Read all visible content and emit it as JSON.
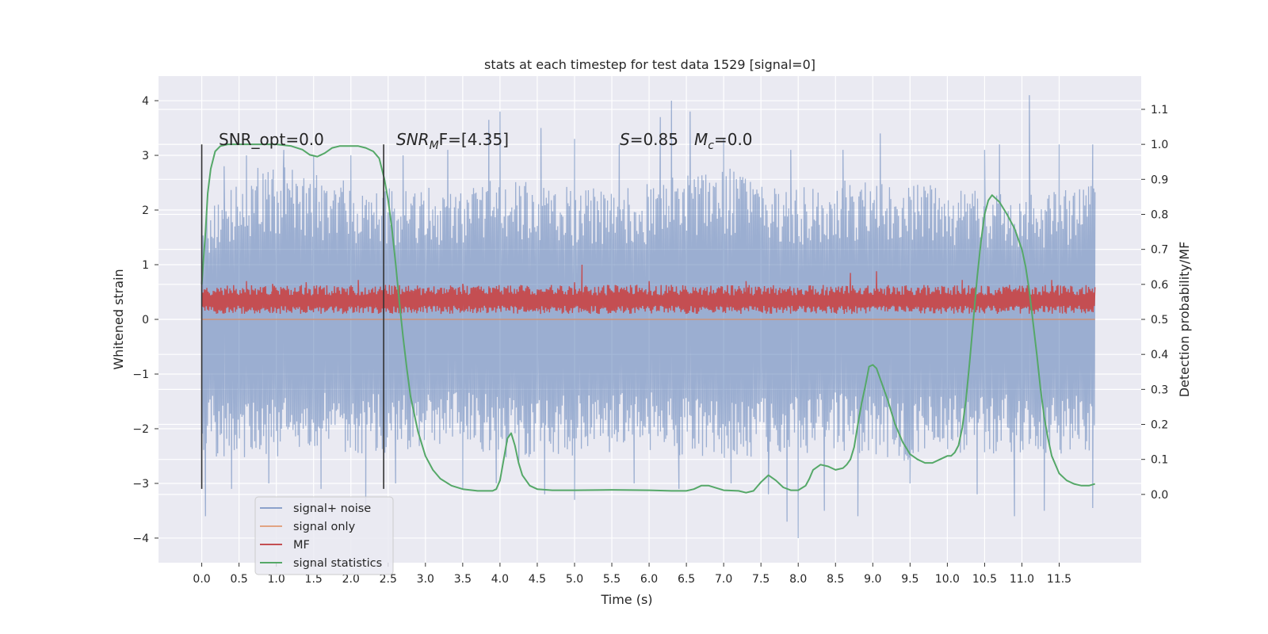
{
  "chart_data": {
    "type": "line",
    "title": "stats at each timestep for test data 1529 [signal=0]",
    "xlabel": "Time (s)",
    "ylabel": "Whitened strain",
    "y2label": "Detection probability/MF",
    "xlim": [
      -0.58,
      12.6
    ],
    "ylim": [
      -4.45,
      4.45
    ],
    "y2lim": [
      -0.195,
      1.195
    ],
    "x_ticks": [
      "0.0",
      "0.5",
      "1.0",
      "1.5",
      "2.0",
      "2.5",
      "3.0",
      "3.5",
      "4.0",
      "4.5",
      "5.0",
      "5.5",
      "6.0",
      "6.5",
      "7.0",
      "7.5",
      "8.0",
      "8.5",
      "9.0",
      "9.5",
      "10.0",
      "10.5",
      "11.0",
      "11.5"
    ],
    "y_ticks": [
      "4",
      "3",
      "2",
      "1",
      "0",
      "−1",
      "−2",
      "−3",
      "−4"
    ],
    "y2_ticks": [
      "1.1",
      "1.0",
      "0.9",
      "0.8",
      "0.7",
      "0.6",
      "0.5",
      "0.4",
      "0.3",
      "0.2",
      "0.1",
      "0.0"
    ],
    "grid": true,
    "legend_placement": "lower-left",
    "annotations": {
      "snr_opt": "SNR_opt=0.0",
      "snr_mf_base": "SNR",
      "snr_mf_sub": "M",
      "snr_mf_rest": "F=[4.35]",
      "s_label": "S",
      "s_rest": "=0.85",
      "mc_base": "M",
      "mc_sub": "c",
      "mc_rest": "=0.0"
    },
    "vertical_markers": [
      0.0,
      2.44
    ],
    "series": [
      {
        "name": "signal+ noise",
        "color": "#4c72b0",
        "axis": "left",
        "band_x": [
          0.0,
          11.98
        ],
        "envelope_upper": [
          2.0,
          2.9,
          2.6,
          2.4,
          2.5,
          2.6,
          2.4,
          2.5,
          2.9,
          2.4,
          2.6,
          2.5,
          2.4,
          2.3,
          2.5
        ],
        "envelope_lower": [
          -2.5,
          -2.6,
          -2.4,
          -2.5,
          -2.3,
          -2.6,
          -2.5,
          -2.4,
          -2.6,
          -2.5,
          -2.4,
          -2.6,
          -2.5,
          -2.5,
          -2.4
        ],
        "spike_max": [
          [
            0.3,
            2.8
          ],
          [
            0.6,
            3.0
          ],
          [
            1.1,
            3.1
          ],
          [
            1.5,
            3.0
          ],
          [
            2.0,
            3.0
          ],
          [
            2.7,
            3.0
          ],
          [
            3.3,
            3.1
          ],
          [
            3.85,
            3.65
          ],
          [
            4.0,
            3.8
          ],
          [
            4.55,
            3.5
          ],
          [
            5.0,
            3.3
          ],
          [
            5.6,
            3.2
          ],
          [
            6.15,
            3.7
          ],
          [
            6.3,
            4.0
          ],
          [
            6.55,
            3.8
          ],
          [
            7.0,
            3.3
          ],
          [
            7.9,
            3.1
          ],
          [
            8.6,
            3.1
          ],
          [
            9.1,
            3.4
          ],
          [
            10.5,
            3.1
          ],
          [
            10.7,
            3.2
          ],
          [
            11.1,
            4.1
          ],
          [
            11.5,
            3.2
          ],
          [
            11.95,
            3.2
          ]
        ],
        "spike_min": [
          [
            0.05,
            -3.6
          ],
          [
            0.4,
            -3.1
          ],
          [
            0.9,
            -3.0
          ],
          [
            1.6,
            -3.1
          ],
          [
            2.2,
            -3.4
          ],
          [
            2.6,
            -3.0
          ],
          [
            3.5,
            -3.1
          ],
          [
            3.95,
            -3.0
          ],
          [
            4.6,
            -3.2
          ],
          [
            5.0,
            -3.3
          ],
          [
            5.8,
            -3.0
          ],
          [
            6.4,
            -3.1
          ],
          [
            7.1,
            -3.0
          ],
          [
            7.6,
            -3.2
          ],
          [
            7.85,
            -3.7
          ],
          [
            8.0,
            -4.0
          ],
          [
            8.35,
            -3.5
          ],
          [
            8.8,
            -3.6
          ],
          [
            9.5,
            -3.0
          ],
          [
            10.4,
            -3.2
          ],
          [
            10.9,
            -3.6
          ],
          [
            11.3,
            -3.5
          ],
          [
            11.95,
            -3.45
          ]
        ]
      },
      {
        "name": "signal only",
        "color": "#dd8452",
        "axis": "left",
        "x": [
          0.0,
          11.98
        ],
        "y": [
          0.0,
          0.0
        ]
      },
      {
        "name": "MF",
        "color": "#c44e52",
        "axis": "left",
        "band_x": [
          0.0,
          11.98
        ],
        "band_low": 0.1,
        "band_high": 0.55,
        "spike_max": [
          [
            0.6,
            0.7
          ],
          [
            0.95,
            0.65
          ],
          [
            1.4,
            0.68
          ],
          [
            2.1,
            0.72
          ],
          [
            3.5,
            0.65
          ],
          [
            5.0,
            0.68
          ],
          [
            5.1,
            1.0
          ],
          [
            6.0,
            0.7
          ],
          [
            7.3,
            0.7
          ],
          [
            8.7,
            0.85
          ],
          [
            9.05,
            0.88
          ],
          [
            10.2,
            0.72
          ],
          [
            11.4,
            0.72
          ]
        ]
      },
      {
        "name": "signal statistics",
        "color": "#55a868",
        "axis": "right",
        "x": [
          0.0,
          0.02,
          0.05,
          0.08,
          0.12,
          0.18,
          0.25,
          0.35,
          0.5,
          0.8,
          1.0,
          1.2,
          1.35,
          1.45,
          1.55,
          1.65,
          1.75,
          1.85,
          1.95,
          2.1,
          2.2,
          2.3,
          2.38,
          2.45,
          2.5,
          2.55,
          2.6,
          2.65,
          2.7,
          2.75,
          2.8,
          2.9,
          3.0,
          3.1,
          3.2,
          3.35,
          3.5,
          3.7,
          3.9,
          3.95,
          4.0,
          4.05,
          4.1,
          4.15,
          4.2,
          4.25,
          4.3,
          4.4,
          4.5,
          4.7,
          5.0,
          5.5,
          6.0,
          6.3,
          6.5,
          6.6,
          6.7,
          6.8,
          7.0,
          7.2,
          7.3,
          7.4,
          7.5,
          7.6,
          7.7,
          7.8,
          7.9,
          8.0,
          8.1,
          8.15,
          8.2,
          8.3,
          8.4,
          8.5,
          8.6,
          8.65,
          8.7,
          8.75,
          8.8,
          8.85,
          8.9,
          8.95,
          9.0,
          9.05,
          9.1,
          9.2,
          9.3,
          9.4,
          9.5,
          9.6,
          9.7,
          9.8,
          9.9,
          10.0,
          10.05,
          10.1,
          10.15,
          10.2,
          10.25,
          10.3,
          10.35,
          10.4,
          10.45,
          10.5,
          10.55,
          10.6,
          10.7,
          10.8,
          10.9,
          11.0,
          11.05,
          11.1,
          11.15,
          11.2,
          11.25,
          11.3,
          11.35,
          11.4,
          11.5,
          11.6,
          11.7,
          11.8,
          11.9,
          11.98
        ],
        "y": [
          0.6,
          0.66,
          0.75,
          0.86,
          0.93,
          0.98,
          0.995,
          1.0,
          1.0,
          1.0,
          1.0,
          0.995,
          0.985,
          0.97,
          0.965,
          0.975,
          0.99,
          0.995,
          0.995,
          0.995,
          0.99,
          0.98,
          0.96,
          0.9,
          0.84,
          0.76,
          0.66,
          0.55,
          0.45,
          0.36,
          0.28,
          0.18,
          0.11,
          0.07,
          0.045,
          0.025,
          0.015,
          0.01,
          0.01,
          0.015,
          0.04,
          0.1,
          0.16,
          0.175,
          0.14,
          0.09,
          0.055,
          0.025,
          0.015,
          0.012,
          0.012,
          0.013,
          0.012,
          0.01,
          0.01,
          0.015,
          0.025,
          0.025,
          0.012,
          0.01,
          0.005,
          0.01,
          0.035,
          0.055,
          0.04,
          0.02,
          0.012,
          0.012,
          0.025,
          0.045,
          0.07,
          0.085,
          0.08,
          0.07,
          0.075,
          0.085,
          0.1,
          0.135,
          0.2,
          0.26,
          0.31,
          0.365,
          0.37,
          0.36,
          0.33,
          0.27,
          0.2,
          0.15,
          0.115,
          0.1,
          0.09,
          0.09,
          0.1,
          0.11,
          0.11,
          0.12,
          0.14,
          0.19,
          0.27,
          0.38,
          0.5,
          0.62,
          0.72,
          0.8,
          0.84,
          0.855,
          0.835,
          0.8,
          0.76,
          0.7,
          0.65,
          0.58,
          0.49,
          0.4,
          0.3,
          0.22,
          0.16,
          0.11,
          0.06,
          0.04,
          0.03,
          0.025,
          0.025,
          0.03
        ]
      }
    ]
  }
}
